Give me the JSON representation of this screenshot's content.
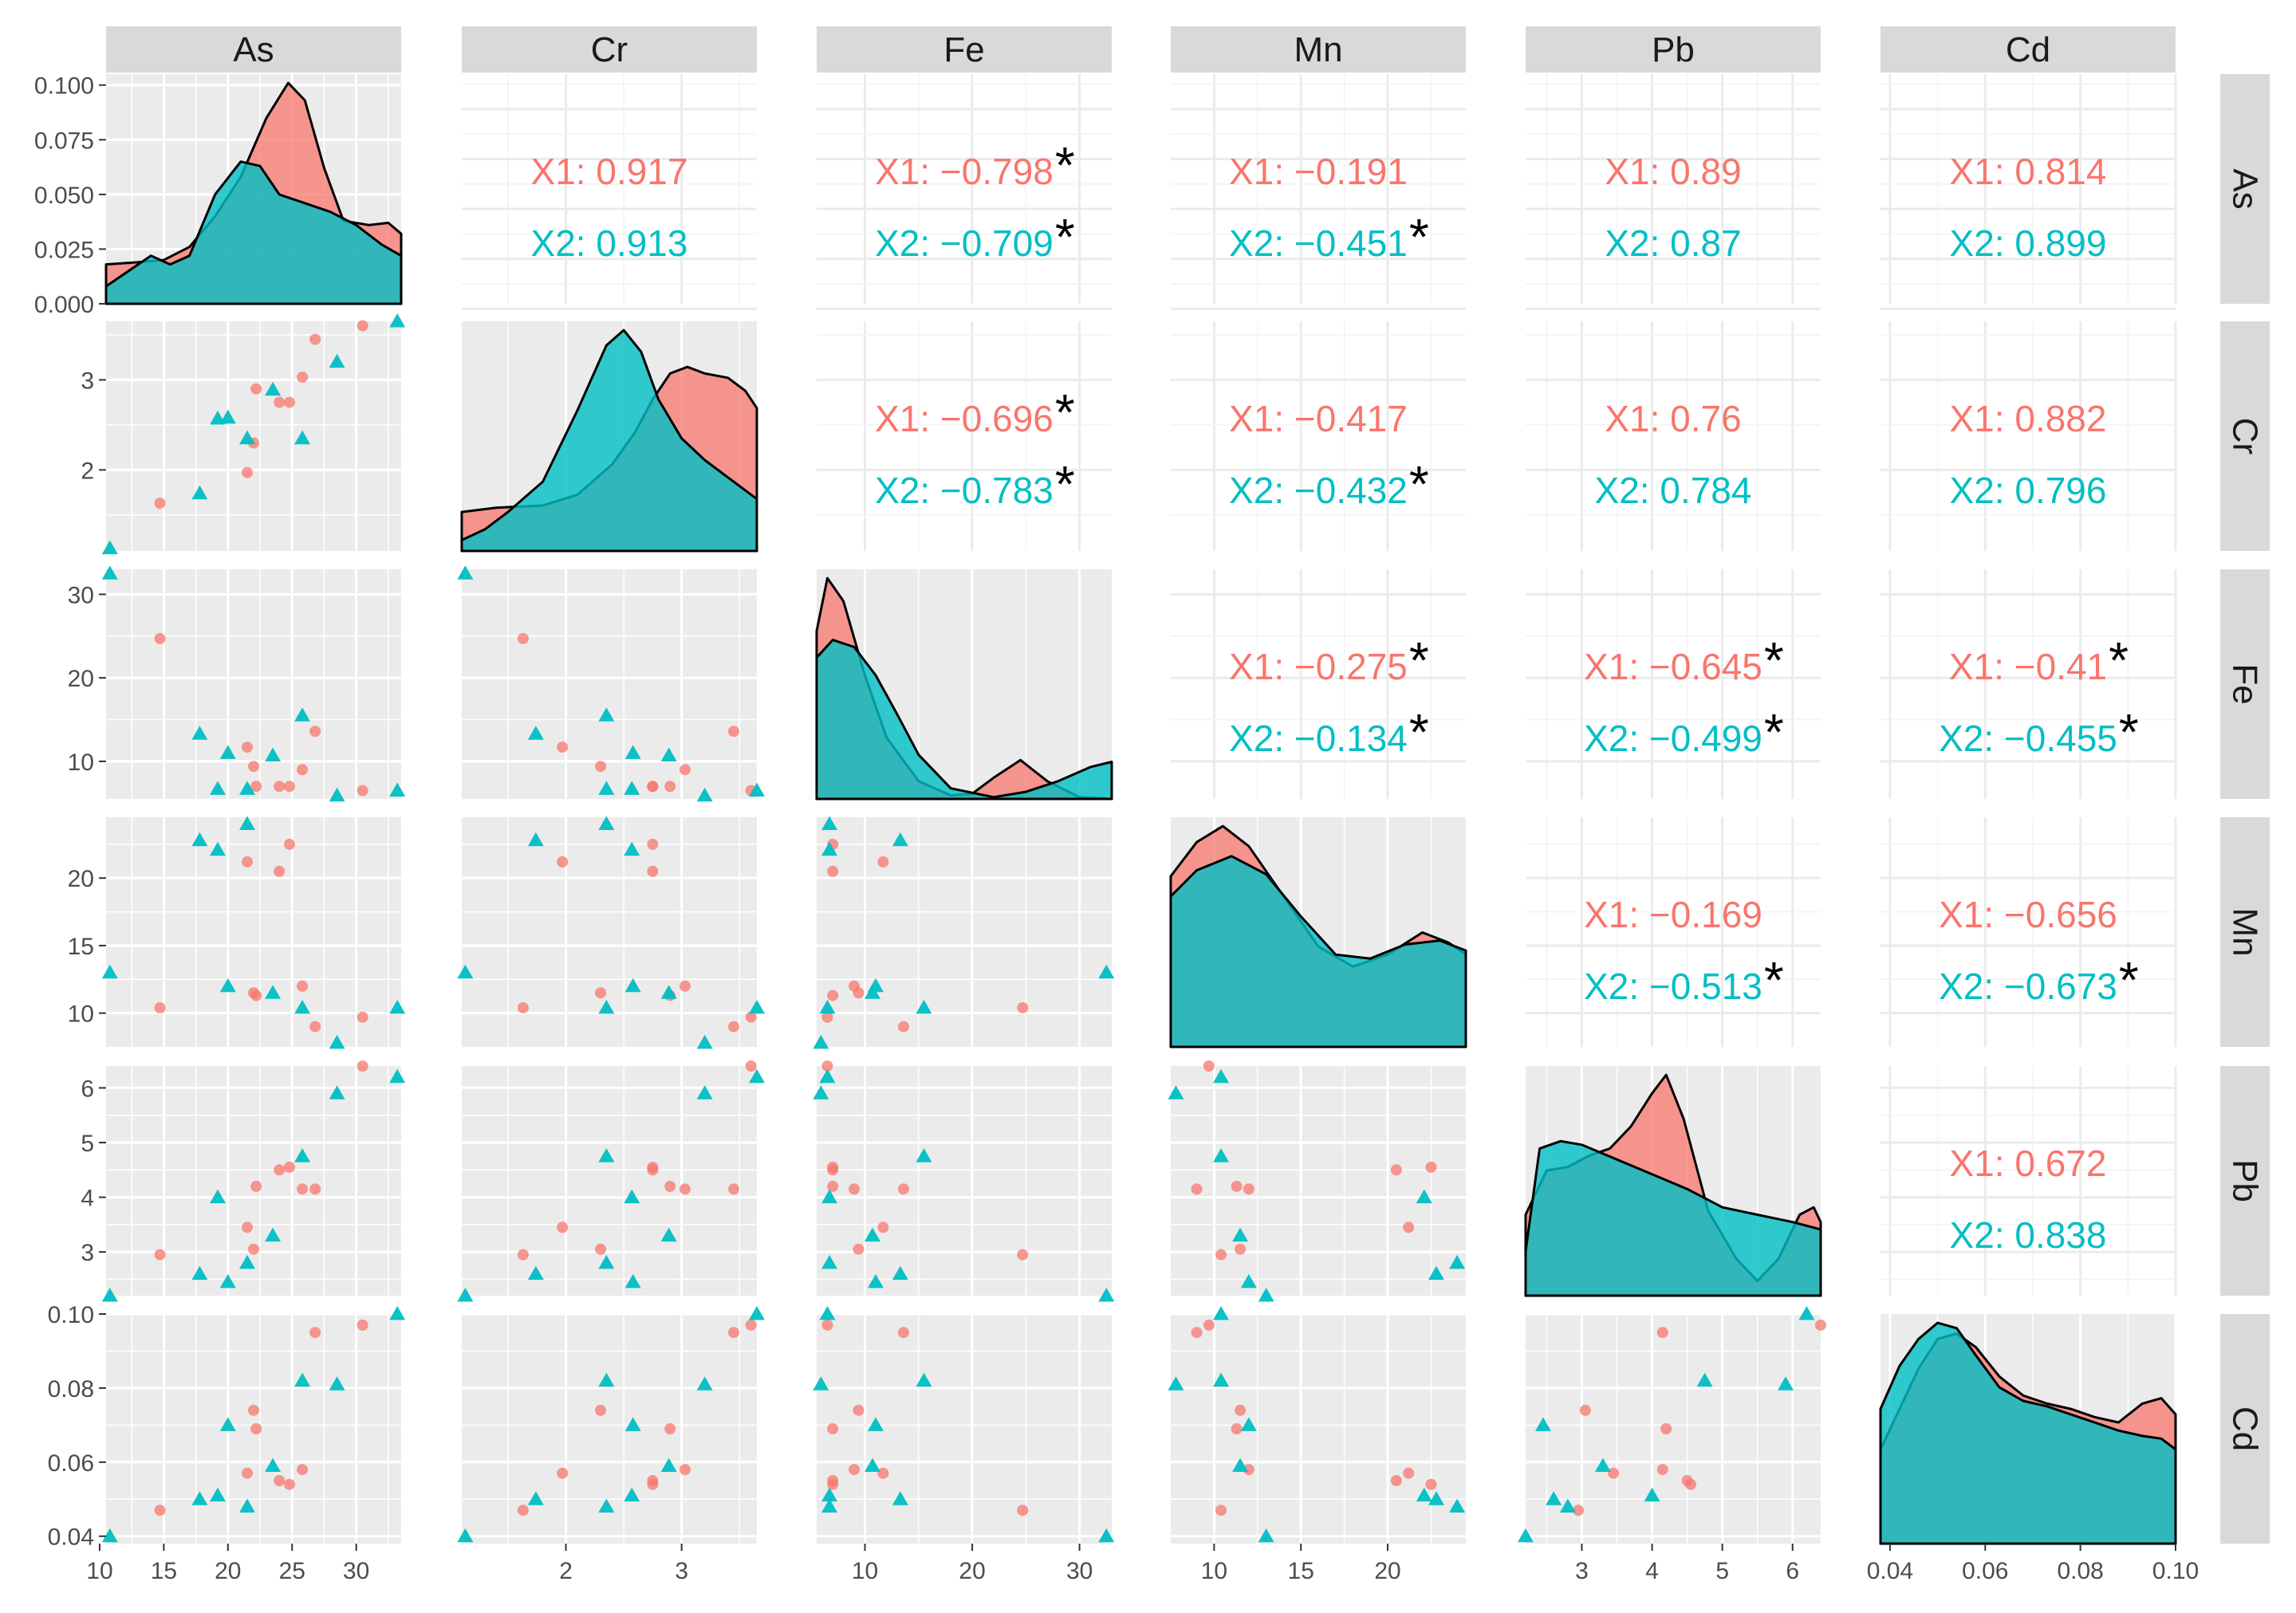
{
  "chart_data": {
    "type": "scatter",
    "variables": [
      "As",
      "Cr",
      "Fe",
      "Mn",
      "Pb",
      "Cd"
    ],
    "group_colors": {
      "X1": "#F8766D",
      "X2": "#00BFC4"
    },
    "ranges": {
      "As": [
        10.5,
        33.5
      ],
      "Cr": [
        1.1,
        3.65
      ],
      "Fe": [
        5.5,
        33
      ],
      "Mn": [
        7.5,
        24.5
      ],
      "Pb": [
        2.2,
        6.4
      ],
      "Cd": [
        0.038,
        0.1
      ]
    },
    "axis_ticks": {
      "As": [
        "10",
        "15",
        "20",
        "25",
        "30"
      ],
      "Cr": [
        "2",
        "3"
      ],
      "Fe": [
        "10",
        "20",
        "30"
      ],
      "Mn": [
        "10",
        "15",
        "20"
      ],
      "Pb": [
        "3",
        "4",
        "5",
        "6"
      ],
      "Cd": [
        "0.04",
        "0.06",
        "0.08",
        "0.10"
      ]
    },
    "density_y_ticks": [
      "0.000",
      "0.025",
      "0.050",
      "0.075",
      "0.100"
    ],
    "density_y_range": [
      0,
      0.105
    ],
    "correlations": [
      {
        "row": "As",
        "col": "Cr",
        "x1": "X1: 0.917",
        "x2": "X2: 0.913",
        "x1_star": "",
        "x2_star": ""
      },
      {
        "row": "As",
        "col": "Fe",
        "x1": "X1: −0.798",
        "x2": "X2: −0.709",
        "x1_star": "*",
        "x2_star": "*"
      },
      {
        "row": "As",
        "col": "Mn",
        "x1": "X1: −0.191",
        "x2": "X2: −0.451",
        "x1_star": "",
        "x2_star": "*"
      },
      {
        "row": "As",
        "col": "Pb",
        "x1": "X1: 0.89",
        "x2": "X2: 0.87",
        "x1_star": "",
        "x2_star": ""
      },
      {
        "row": "As",
        "col": "Cd",
        "x1": "X1: 0.814",
        "x2": "X2: 0.899",
        "x1_star": "",
        "x2_star": ""
      },
      {
        "row": "Cr",
        "col": "Fe",
        "x1": "X1: −0.696",
        "x2": "X2: −0.783",
        "x1_star": "*",
        "x2_star": "*"
      },
      {
        "row": "Cr",
        "col": "Mn",
        "x1": "X1: −0.417",
        "x2": "X2: −0.432",
        "x1_star": "",
        "x2_star": "*"
      },
      {
        "row": "Cr",
        "col": "Pb",
        "x1": "X1: 0.76",
        "x2": "X2: 0.784",
        "x1_star": "",
        "x2_star": ""
      },
      {
        "row": "Cr",
        "col": "Cd",
        "x1": "X1: 0.882",
        "x2": "X2: 0.796",
        "x1_star": "",
        "x2_star": ""
      },
      {
        "row": "Fe",
        "col": "Mn",
        "x1": "X1: −0.275",
        "x2": "X2: −0.134",
        "x1_star": "*",
        "x2_star": "*"
      },
      {
        "row": "Fe",
        "col": "Pb",
        "x1": "X1: −0.645",
        "x2": "X2: −0.499",
        "x1_star": "*",
        "x2_star": "*"
      },
      {
        "row": "Fe",
        "col": "Cd",
        "x1": "X1: −0.41",
        "x2": "X2: −0.455",
        "x1_star": "*",
        "x2_star": "*"
      },
      {
        "row": "Mn",
        "col": "Pb",
        "x1": "X1: −0.169",
        "x2": "X2: −0.513",
        "x1_star": "",
        "x2_star": "*"
      },
      {
        "row": "Mn",
        "col": "Cd",
        "x1": "X1: −0.656",
        "x2": "X2: −0.673",
        "x1_star": "",
        "x2_star": "*"
      },
      {
        "row": "Pb",
        "col": "Cd",
        "x1": "X1: 0.672",
        "x2": "X2: 0.838",
        "x1_star": "",
        "x2_star": ""
      }
    ],
    "points": {
      "X1": [
        {
          "As": 14.7,
          "Cr": 1.63,
          "Fe": 24.7,
          "Mn": 10.4,
          "Pb": 2.95,
          "Cd": 0.047
        },
        {
          "As": 21.5,
          "Cr": 1.97,
          "Fe": 11.7,
          "Mn": 21.2,
          "Pb": 3.45,
          "Cd": 0.057
        },
        {
          "As": 22.0,
          "Cr": 2.3,
          "Fe": 9.4,
          "Mn": 11.5,
          "Pb": 3.05,
          "Cd": 0.074
        },
        {
          "As": 22.2,
          "Cr": 2.9,
          "Fe": 7.0,
          "Mn": 11.3,
          "Pb": 4.2,
          "Cd": 0.069
        },
        {
          "As": 24.0,
          "Cr": 2.75,
          "Fe": 7.0,
          "Mn": 20.5,
          "Pb": 4.5,
          "Cd": 0.055
        },
        {
          "As": 24.8,
          "Cr": 2.75,
          "Fe": 7.0,
          "Mn": 22.5,
          "Pb": 4.55,
          "Cd": 0.054
        },
        {
          "As": 25.8,
          "Cr": 3.03,
          "Fe": 9.0,
          "Mn": 12.0,
          "Pb": 4.15,
          "Cd": 0.058
        },
        {
          "As": 26.8,
          "Cr": 3.45,
          "Fe": 13.6,
          "Mn": 9.0,
          "Pb": 4.15,
          "Cd": 0.095
        },
        {
          "As": 30.5,
          "Cr": 3.6,
          "Fe": 6.5,
          "Mn": 9.7,
          "Pb": 6.4,
          "Cd": 0.097
        }
      ],
      "X2": [
        {
          "As": 10.8,
          "Cr": 1.13,
          "Fe": 32.5,
          "Mn": 13.0,
          "Pb": 2.2,
          "Cd": 0.04
        },
        {
          "As": 17.8,
          "Cr": 1.74,
          "Fe": 13.3,
          "Mn": 22.8,
          "Pb": 2.6,
          "Cd": 0.05
        },
        {
          "As": 19.2,
          "Cr": 2.57,
          "Fe": 6.7,
          "Mn": 22.1,
          "Pb": 4.0,
          "Cd": 0.051
        },
        {
          "As": 20.0,
          "Cr": 2.58,
          "Fe": 11.0,
          "Mn": 12.0,
          "Pb": 2.45,
          "Cd": 0.07
        },
        {
          "As": 21.5,
          "Cr": 2.35,
          "Fe": 6.7,
          "Mn": 24.0,
          "Pb": 2.8,
          "Cd": 0.048
        },
        {
          "As": 23.5,
          "Cr": 2.89,
          "Fe": 10.7,
          "Mn": 11.5,
          "Pb": 3.3,
          "Cd": 0.059
        },
        {
          "As": 25.8,
          "Cr": 2.35,
          "Fe": 15.5,
          "Mn": 10.4,
          "Pb": 4.75,
          "Cd": 0.082
        },
        {
          "As": 28.5,
          "Cr": 3.2,
          "Fe": 5.9,
          "Mn": 7.8,
          "Pb": 5.9,
          "Cd": 0.081
        },
        {
          "As": 33.2,
          "Cr": 3.65,
          "Fe": 6.5,
          "Mn": 10.4,
          "Pb": 6.2,
          "Cd": 0.1
        }
      ]
    },
    "densities": {
      "As": {
        "X1": [
          [
            10.5,
            0.018
          ],
          [
            13,
            0.019
          ],
          [
            15,
            0.02
          ],
          [
            17,
            0.026
          ],
          [
            19,
            0.04
          ],
          [
            21,
            0.058
          ],
          [
            23,
            0.085
          ],
          [
            24.7,
            0.101
          ],
          [
            26,
            0.093
          ],
          [
            27.5,
            0.062
          ],
          [
            29,
            0.038
          ],
          [
            31,
            0.036
          ],
          [
            32.5,
            0.037
          ],
          [
            33.5,
            0.032
          ]
        ],
        "X2": [
          [
            10.5,
            0.008
          ],
          [
            12,
            0.014
          ],
          [
            14,
            0.022
          ],
          [
            15.5,
            0.018
          ],
          [
            17,
            0.022
          ],
          [
            19,
            0.05
          ],
          [
            21,
            0.065
          ],
          [
            22.5,
            0.063
          ],
          [
            24,
            0.05
          ],
          [
            26,
            0.046
          ],
          [
            28,
            0.042
          ],
          [
            30,
            0.036
          ],
          [
            32,
            0.027
          ],
          [
            33.5,
            0.022
          ]
        ]
      },
      "Cr": {
        "X1": [
          [
            1.1,
            0.18
          ],
          [
            1.4,
            0.2
          ],
          [
            1.8,
            0.21
          ],
          [
            2.1,
            0.26
          ],
          [
            2.4,
            0.4
          ],
          [
            2.6,
            0.55
          ],
          [
            2.75,
            0.7
          ],
          [
            2.9,
            0.82
          ],
          [
            3.05,
            0.85
          ],
          [
            3.2,
            0.82
          ],
          [
            3.4,
            0.8
          ],
          [
            3.55,
            0.74
          ],
          [
            3.65,
            0.66
          ]
        ],
        "X2": [
          [
            1.1,
            0.05
          ],
          [
            1.3,
            0.1
          ],
          [
            1.5,
            0.18
          ],
          [
            1.8,
            0.32
          ],
          [
            2.1,
            0.65
          ],
          [
            2.35,
            0.95
          ],
          [
            2.5,
            1.02
          ],
          [
            2.65,
            0.92
          ],
          [
            2.8,
            0.7
          ],
          [
            3.0,
            0.52
          ],
          [
            3.2,
            0.42
          ],
          [
            3.4,
            0.34
          ],
          [
            3.65,
            0.24
          ]
        ]
      },
      "Fe": {
        "X1": [
          [
            5.5,
            0.095
          ],
          [
            6.5,
            0.125
          ],
          [
            8,
            0.112
          ],
          [
            10,
            0.07
          ],
          [
            12,
            0.035
          ],
          [
            15,
            0.01
          ],
          [
            18,
            0.002
          ],
          [
            20,
            0.003
          ],
          [
            22,
            0.012
          ],
          [
            24.5,
            0.022
          ],
          [
            27,
            0.01
          ],
          [
            30,
            0.001
          ],
          [
            33,
            0.0
          ]
        ],
        "X2": [
          [
            5.5,
            0.08
          ],
          [
            7,
            0.09
          ],
          [
            9,
            0.086
          ],
          [
            11,
            0.07
          ],
          [
            13,
            0.048
          ],
          [
            15,
            0.025
          ],
          [
            18,
            0.006
          ],
          [
            22,
            0.001
          ],
          [
            25,
            0.004
          ],
          [
            28,
            0.01
          ],
          [
            31,
            0.018
          ],
          [
            33,
            0.021
          ]
        ]
      },
      "Mn": {
        "X1": [
          [
            7.5,
            0.085
          ],
          [
            9,
            0.102
          ],
          [
            10.5,
            0.11
          ],
          [
            12,
            0.1
          ],
          [
            14,
            0.075
          ],
          [
            16,
            0.05
          ],
          [
            18,
            0.04
          ],
          [
            20,
            0.046
          ],
          [
            22,
            0.057
          ],
          [
            23.5,
            0.052
          ],
          [
            24.5,
            0.046
          ]
        ],
        "X2": [
          [
            7.5,
            0.075
          ],
          [
            9,
            0.088
          ],
          [
            11,
            0.095
          ],
          [
            13,
            0.086
          ],
          [
            15,
            0.065
          ],
          [
            17,
            0.046
          ],
          [
            19,
            0.044
          ],
          [
            21,
            0.051
          ],
          [
            23,
            0.053
          ],
          [
            24.5,
            0.048
          ]
        ]
      },
      "Pb": {
        "X1": [
          [
            2.2,
            0.22
          ],
          [
            2.5,
            0.34
          ],
          [
            2.8,
            0.35
          ],
          [
            3.1,
            0.38
          ],
          [
            3.4,
            0.4
          ],
          [
            3.7,
            0.46
          ],
          [
            4.0,
            0.55
          ],
          [
            4.2,
            0.6
          ],
          [
            4.45,
            0.48
          ],
          [
            4.8,
            0.23
          ],
          [
            5.2,
            0.1
          ],
          [
            5.5,
            0.04
          ],
          [
            5.8,
            0.1
          ],
          [
            6.1,
            0.22
          ],
          [
            6.3,
            0.24
          ],
          [
            6.4,
            0.2
          ]
        ],
        "X2": [
          [
            2.2,
            0.12
          ],
          [
            2.4,
            0.4
          ],
          [
            2.7,
            0.42
          ],
          [
            3.0,
            0.41
          ],
          [
            3.5,
            0.37
          ],
          [
            4.0,
            0.33
          ],
          [
            4.5,
            0.29
          ],
          [
            5.0,
            0.24
          ],
          [
            5.5,
            0.22
          ],
          [
            6.0,
            0.2
          ],
          [
            6.4,
            0.18
          ]
        ]
      },
      "Cd": {
        "X1": [
          [
            0.038,
            0.35
          ],
          [
            0.042,
            0.5
          ],
          [
            0.046,
            0.65
          ],
          [
            0.05,
            0.76
          ],
          [
            0.054,
            0.78
          ],
          [
            0.058,
            0.73
          ],
          [
            0.063,
            0.62
          ],
          [
            0.068,
            0.55
          ],
          [
            0.073,
            0.52
          ],
          [
            0.078,
            0.5
          ],
          [
            0.083,
            0.47
          ],
          [
            0.088,
            0.45
          ],
          [
            0.093,
            0.52
          ],
          [
            0.097,
            0.54
          ],
          [
            0.1,
            0.48
          ]
        ],
        "X2": [
          [
            0.038,
            0.5
          ],
          [
            0.042,
            0.66
          ],
          [
            0.046,
            0.76
          ],
          [
            0.05,
            0.82
          ],
          [
            0.054,
            0.8
          ],
          [
            0.058,
            0.7
          ],
          [
            0.063,
            0.58
          ],
          [
            0.068,
            0.53
          ],
          [
            0.073,
            0.51
          ],
          [
            0.078,
            0.48
          ],
          [
            0.083,
            0.45
          ],
          [
            0.088,
            0.42
          ],
          [
            0.093,
            0.4
          ],
          [
            0.097,
            0.39
          ],
          [
            0.1,
            0.35
          ]
        ]
      }
    }
  }
}
